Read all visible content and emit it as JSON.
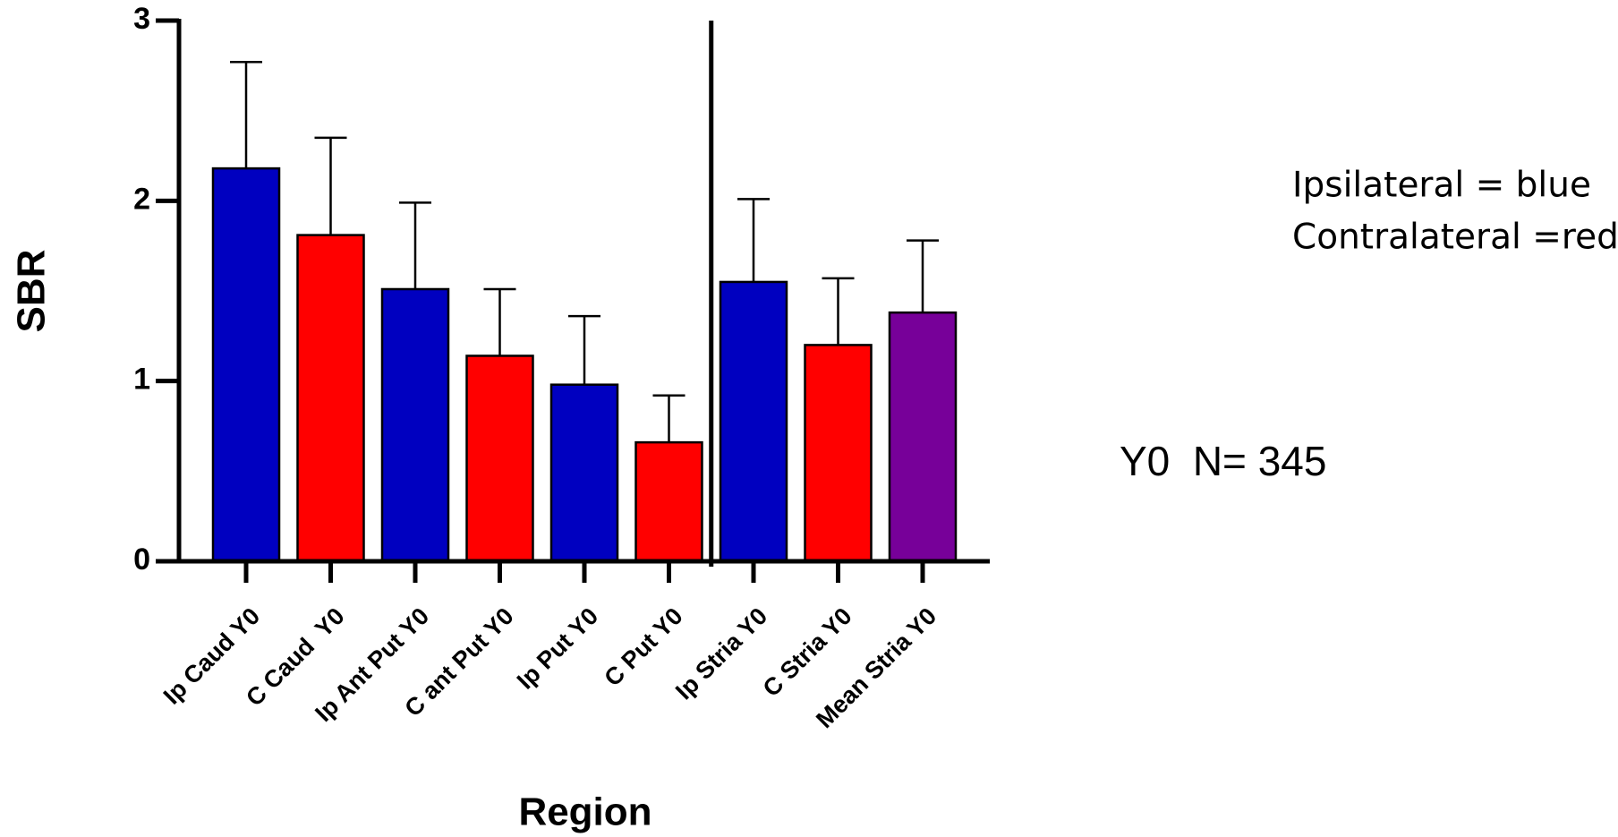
{
  "chart_data": {
    "type": "bar",
    "xlabel": "Region",
    "ylabel": "SBR",
    "categories": [
      "Ip Caud Y0",
      "C Caud  Y0",
      "Ip Ant Put Y0",
      "C ant Put Y0",
      "Ip Put Y0",
      "C Put Y0",
      "Ip Stria Y0",
      "C Stria Y0",
      "Mean Stria Y0"
    ],
    "values": [
      2.18,
      1.81,
      1.51,
      1.14,
      0.98,
      0.66,
      1.55,
      1.2,
      1.38
    ],
    "errors": [
      0.59,
      0.54,
      0.48,
      0.37,
      0.38,
      0.26,
      0.46,
      0.37,
      0.4
    ],
    "colors": [
      "#0000c0",
      "#ff0000",
      "#0000c0",
      "#ff0000",
      "#0000c0",
      "#ff0000",
      "#0000c0",
      "#ff0000",
      "#770099"
    ],
    "ylim": [
      0,
      3
    ],
    "yticks": [
      0,
      1,
      2,
      3
    ],
    "annotations": [
      "Ipsilateral = blue",
      "Contralateral =red",
      "Y0  N= 345"
    ]
  }
}
